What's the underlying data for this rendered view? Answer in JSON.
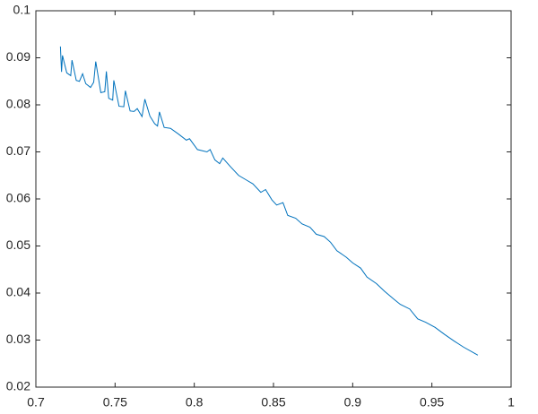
{
  "chart_data": {
    "type": "line",
    "color": "#0072bd",
    "x": [
      0.7155,
      0.7162,
      0.7168,
      0.7195,
      0.722,
      0.7228,
      0.7255,
      0.7275,
      0.7295,
      0.7315,
      0.7345,
      0.7365,
      0.7378,
      0.741,
      0.7435,
      0.7445,
      0.746,
      0.7485,
      0.7492,
      0.7525,
      0.7555,
      0.7565,
      0.7595,
      0.762,
      0.764,
      0.767,
      0.7688,
      0.772,
      0.775,
      0.7768,
      0.778,
      0.781,
      0.785,
      0.79,
      0.795,
      0.797,
      0.802,
      0.808,
      0.81,
      0.813,
      0.816,
      0.818,
      0.823,
      0.828,
      0.833,
      0.837,
      0.842,
      0.845,
      0.849,
      0.852,
      0.856,
      0.859,
      0.864,
      0.868,
      0.873,
      0.877,
      0.882,
      0.886,
      0.89,
      0.896,
      0.9,
      0.905,
      0.909,
      0.915,
      0.92,
      0.926,
      0.93,
      0.936,
      0.941,
      0.946,
      0.952,
      0.958,
      0.964,
      0.97,
      0.979
    ],
    "values": [
      0.0924,
      0.087,
      0.0905,
      0.0868,
      0.0862,
      0.0895,
      0.0852,
      0.085,
      0.0866,
      0.0845,
      0.0837,
      0.0848,
      0.0892,
      0.0826,
      0.0828,
      0.0871,
      0.0814,
      0.081,
      0.0852,
      0.0797,
      0.0796,
      0.083,
      0.0787,
      0.0786,
      0.0792,
      0.0775,
      0.0812,
      0.0776,
      0.076,
      0.0755,
      0.0785,
      0.0752,
      0.075,
      0.0738,
      0.0725,
      0.0728,
      0.0705,
      0.07,
      0.0705,
      0.0683,
      0.0675,
      0.0687,
      0.0668,
      0.065,
      0.064,
      0.0632,
      0.0614,
      0.062,
      0.0598,
      0.0587,
      0.0592,
      0.0565,
      0.0559,
      0.0547,
      0.054,
      0.0525,
      0.052,
      0.0508,
      0.049,
      0.0476,
      0.0464,
      0.0453,
      0.0434,
      0.042,
      0.0404,
      0.0387,
      0.0376,
      0.0366,
      0.0345,
      0.0338,
      0.0327,
      0.0312,
      0.0298,
      0.0285,
      0.0268
    ],
    "xlim": [
      0.7,
      1
    ],
    "xticks": [
      0.7,
      0.75,
      0.8,
      0.85,
      0.9,
      0.95,
      1
    ],
    "ylim": [
      0.02,
      0.1
    ],
    "yticks": [
      0.02,
      0.03,
      0.04,
      0.05,
      0.06,
      0.07,
      0.08,
      0.09,
      0.1
    ]
  }
}
